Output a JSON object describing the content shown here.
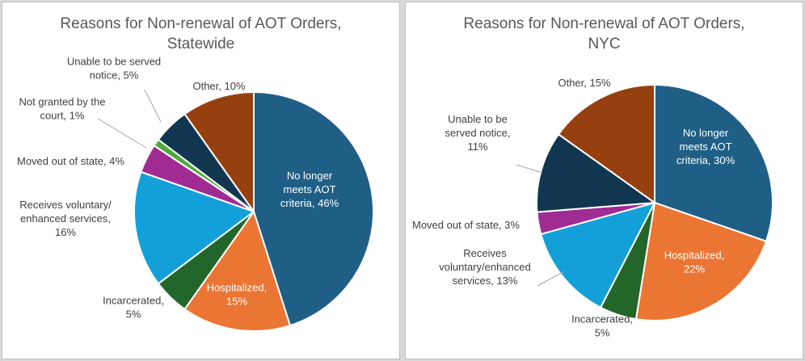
{
  "colors": {
    "no_longer": "#1f5f86",
    "hospitalized": "#eb7532",
    "incarcerated": "#23662a",
    "voluntary": "#13a0d8",
    "moved": "#a02b93",
    "not_granted": "#4eab3c",
    "unable": "#10374f",
    "other": "#97400f"
  },
  "chart_data": [
    {
      "type": "pie",
      "title_line1": "Reasons for Non-renewal of AOT Orders,",
      "title_line2": "Statewide",
      "slices": [
        {
          "key": "no_longer",
          "value": 46,
          "label_lines": [
            "No longer",
            "meets AOT",
            "criteria, 46%"
          ],
          "inside": true,
          "text_color": "#ffffff"
        },
        {
          "key": "hospitalized",
          "value": 15,
          "label_lines": [
            "Hospitalized,",
            "15%"
          ],
          "inside": true,
          "text_color": "#ffffff"
        },
        {
          "key": "incarcerated",
          "value": 5,
          "label_lines": [
            "Incarcerated,",
            "5%"
          ],
          "inside": false
        },
        {
          "key": "voluntary",
          "value": 16,
          "label_lines": [
            "Receives voluntary/",
            "enhanced services,",
            "16%"
          ],
          "inside": false
        },
        {
          "key": "moved",
          "value": 4,
          "label_lines": [
            "Moved out of state, 4%"
          ],
          "inside": false
        },
        {
          "key": "not_granted",
          "value": 1,
          "label_lines": [
            "Not granted by the",
            "court, 1%"
          ],
          "inside": false
        },
        {
          "key": "unable",
          "value": 5,
          "label_lines": [
            "Unable to be served",
            "notice, 5%"
          ],
          "inside": false
        },
        {
          "key": "other",
          "value": 10,
          "label_lines": [
            "Other, 10%"
          ],
          "inside": false
        }
      ]
    },
    {
      "type": "pie",
      "title_line1": "Reasons for Non-renewal of AOT Orders,",
      "title_line2": "NYC",
      "slices": [
        {
          "key": "no_longer",
          "value": 30,
          "label_lines": [
            "No longer",
            "meets AOT",
            "criteria, 30%"
          ],
          "inside": true,
          "text_color": "#ffffff"
        },
        {
          "key": "hospitalized",
          "value": 22,
          "label_lines": [
            "Hospitalized,",
            "22%"
          ],
          "inside": true,
          "text_color": "#ffffff"
        },
        {
          "key": "incarcerated",
          "value": 5,
          "label_lines": [
            "Incarcerated,",
            "5%"
          ],
          "inside": false
        },
        {
          "key": "voluntary",
          "value": 13,
          "label_lines": [
            "Receives",
            "voluntary/enhanced",
            "services, 13%"
          ],
          "inside": false
        },
        {
          "key": "moved",
          "value": 3,
          "label_lines": [
            "Moved out of state, 3%"
          ],
          "inside": false
        },
        {
          "key": "unable",
          "value": 11,
          "label_lines": [
            "Unable to be",
            "served notice,",
            "11%"
          ],
          "inside": false
        },
        {
          "key": "other",
          "value": 15,
          "label_lines": [
            "Other, 15%"
          ],
          "inside": false
        }
      ]
    }
  ]
}
